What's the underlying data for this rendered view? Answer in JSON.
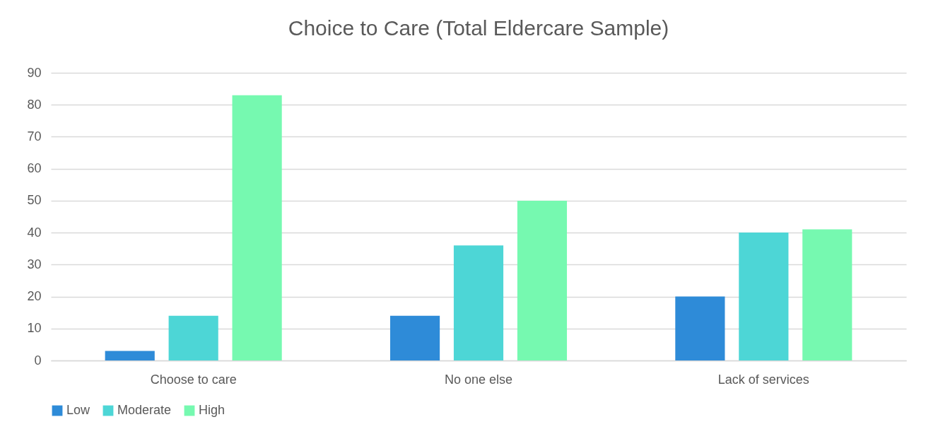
{
  "chart_data": {
    "type": "bar",
    "title": "Choice to Care (Total Eldercare Sample)",
    "categories": [
      "Choose to care",
      "No one else",
      "Lack of services"
    ],
    "series": [
      {
        "name": "Low",
        "color": "#2e8bd8",
        "values": [
          3,
          14,
          20
        ]
      },
      {
        "name": "Moderate",
        "color": "#4dd6d6",
        "values": [
          14,
          36,
          40
        ]
      },
      {
        "name": "High",
        "color": "#76f9b0",
        "values": [
          83,
          50,
          41
        ]
      }
    ],
    "ylim": [
      0,
      90
    ],
    "yticks": [
      0,
      10,
      20,
      30,
      40,
      50,
      60,
      70,
      80,
      90
    ],
    "grid": "y",
    "legend": "bottom"
  }
}
